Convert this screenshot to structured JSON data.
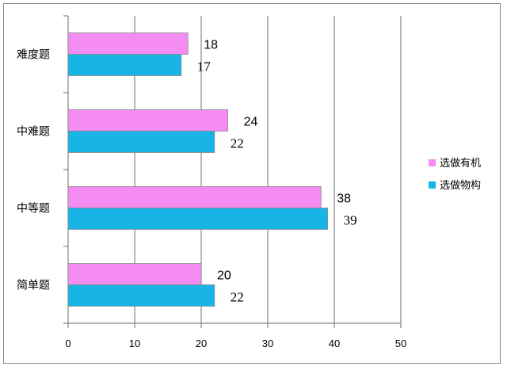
{
  "chart_data": {
    "type": "bar",
    "orientation": "horizontal",
    "categories": [
      "难度题",
      "中难题",
      "中等题",
      "简单题"
    ],
    "series": [
      {
        "name": "选做有机",
        "color": "#f48cf4",
        "values": [
          18,
          24,
          38,
          20
        ]
      },
      {
        "name": "选做物构",
        "color": "#19b4e6",
        "values": [
          17,
          22,
          39,
          22
        ]
      }
    ],
    "xticks": [
      "0",
      "10",
      "20",
      "30",
      "40",
      "50"
    ],
    "xlim": [
      0,
      50
    ],
    "grid": "vertical",
    "legend": "right",
    "title": "",
    "xlabel": "",
    "ylabel": ""
  }
}
